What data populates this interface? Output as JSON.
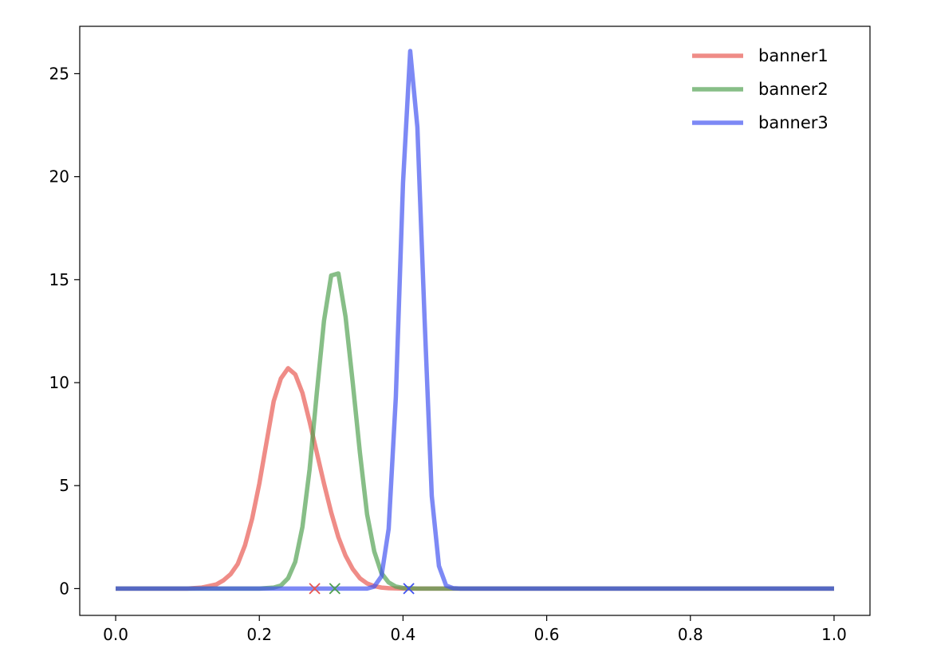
{
  "chart_data": {
    "type": "line",
    "title": "",
    "xlabel": "",
    "ylabel": "",
    "xlim": [
      -0.05,
      1.05
    ],
    "ylim": [
      -1.3,
      27.3
    ],
    "xticks": [
      {
        "value": 0.0,
        "label": "0.0"
      },
      {
        "value": 0.2,
        "label": "0.2"
      },
      {
        "value": 0.4,
        "label": "0.4"
      },
      {
        "value": 0.6,
        "label": "0.6"
      },
      {
        "value": 0.8,
        "label": "0.8"
      },
      {
        "value": 1.0,
        "label": "1.0"
      }
    ],
    "yticks": [
      {
        "value": 0,
        "label": "0"
      },
      {
        "value": 5,
        "label": "5"
      },
      {
        "value": 10,
        "label": "10"
      },
      {
        "value": 15,
        "label": "15"
      },
      {
        "value": 20,
        "label": "20"
      },
      {
        "value": 25,
        "label": "25"
      }
    ],
    "grid": false,
    "legend_position": "top-right",
    "series": [
      {
        "name": "banner1",
        "color": "#e8554e",
        "marker_x": 0.277,
        "x": [
          0.0,
          0.1,
          0.12,
          0.14,
          0.15,
          0.16,
          0.17,
          0.18,
          0.19,
          0.2,
          0.21,
          0.22,
          0.23,
          0.24,
          0.25,
          0.26,
          0.27,
          0.28,
          0.29,
          0.3,
          0.31,
          0.32,
          0.33,
          0.34,
          0.35,
          0.36,
          0.37,
          0.38,
          0.39,
          0.4,
          1.0
        ],
        "values": [
          0.0,
          0.0,
          0.05,
          0.2,
          0.4,
          0.7,
          1.2,
          2.1,
          3.4,
          5.1,
          7.1,
          9.1,
          10.2,
          10.7,
          10.4,
          9.5,
          8.1,
          6.6,
          5.1,
          3.7,
          2.5,
          1.6,
          0.95,
          0.5,
          0.25,
          0.12,
          0.05,
          0.02,
          0.01,
          0.0,
          0.0
        ]
      },
      {
        "name": "banner2",
        "color": "#4e9f4e",
        "marker_x": 0.305,
        "x": [
          0.0,
          0.2,
          0.22,
          0.23,
          0.24,
          0.25,
          0.26,
          0.27,
          0.28,
          0.29,
          0.3,
          0.31,
          0.32,
          0.33,
          0.34,
          0.35,
          0.36,
          0.37,
          0.38,
          0.39,
          0.4,
          0.42,
          1.0
        ],
        "values": [
          0.0,
          0.0,
          0.05,
          0.15,
          0.5,
          1.3,
          3.0,
          5.8,
          9.5,
          13.0,
          15.2,
          15.3,
          13.2,
          10.0,
          6.6,
          3.6,
          1.8,
          0.75,
          0.3,
          0.1,
          0.03,
          0.0,
          0.0
        ]
      },
      {
        "name": "banner3",
        "color": "#3f51f0",
        "marker_x": 0.408,
        "x": [
          0.0,
          0.35,
          0.36,
          0.37,
          0.38,
          0.39,
          0.4,
          0.41,
          0.42,
          0.43,
          0.44,
          0.45,
          0.46,
          0.47,
          0.48,
          1.0
        ],
        "values": [
          0.0,
          0.0,
          0.1,
          0.6,
          2.9,
          9.3,
          19.7,
          26.1,
          22.4,
          13.1,
          4.5,
          1.1,
          0.15,
          0.02,
          0.0,
          0.0
        ]
      }
    ]
  }
}
